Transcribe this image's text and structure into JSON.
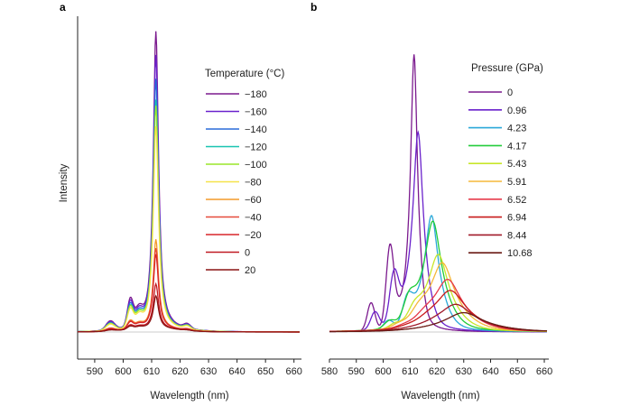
{
  "chart_data": [
    {
      "type": "line",
      "panel_label": "a",
      "xlabel": "Wavelength (nm)",
      "ylabel": "Intensity",
      "xlim": [
        584,
        662
      ],
      "ylim": [
        0,
        1.05
      ],
      "xticks": [
        590,
        600,
        610,
        620,
        630,
        640,
        650,
        660
      ],
      "legend_title": "Temperature (°C)",
      "legend_position": "right",
      "series": [
        {
          "name": "−180",
          "color": "#7b1a8e",
          "peak": 1.0
        },
        {
          "name": "−160",
          "color": "#6a22cc",
          "peak": 0.92
        },
        {
          "name": "−140",
          "color": "#2a6bd9",
          "peak": 0.84
        },
        {
          "name": "−120",
          "color": "#19c4b0",
          "peak": 0.77
        },
        {
          "name": "−100",
          "color": "#9ae62a",
          "peak": 0.75
        },
        {
          "name": "−80",
          "color": "#f5e34a",
          "peak": 0.68
        },
        {
          "name": "−60",
          "color": "#f39a2a",
          "peak": 0.3
        },
        {
          "name": "−40",
          "color": "#e64a3a",
          "peak": 0.27
        },
        {
          "name": "−20",
          "color": "#d9262a",
          "peak": 0.25
        },
        {
          "name": "0",
          "color": "#c01a22",
          "peak": 0.15
        },
        {
          "name": "20",
          "color": "#8a1414",
          "peak": 0.11
        }
      ]
    },
    {
      "type": "line",
      "panel_label": "b",
      "xlabel": "Wavelength (nm)",
      "xlim": [
        580,
        661
      ],
      "ylim": [
        0,
        1.05
      ],
      "xticks": [
        580,
        590,
        600,
        610,
        620,
        630,
        640,
        650,
        660
      ],
      "legend_title": "Pressure (GPa)",
      "legend_position": "right",
      "series": [
        {
          "name": "0",
          "color": "#7b1a8e",
          "peak_x": 611.5,
          "peak": 1.0
        },
        {
          "name": "0.96",
          "color": "#6a22cc",
          "peak_x": 613.0,
          "peak": 0.72
        },
        {
          "name": "4.23",
          "color": "#2aa8d9",
          "peak_x": 618.0,
          "peak": 0.42
        },
        {
          "name": "4.17",
          "color": "#22cc3a",
          "peak_x": 618.5,
          "peak": 0.4
        },
        {
          "name": "5.43",
          "color": "#c8e62a",
          "peak_x": 620.5,
          "peak": 0.28
        },
        {
          "name": "5.91",
          "color": "#f5b83a",
          "peak_x": 622.0,
          "peak": 0.25
        },
        {
          "name": "6.52",
          "color": "#e63a4a",
          "peak_x": 624.0,
          "peak": 0.19
        },
        {
          "name": "6.94",
          "color": "#c81a1a",
          "peak_x": 625.0,
          "peak": 0.15
        },
        {
          "name": "8.44",
          "color": "#a01a2a",
          "peak_x": 627.0,
          "peak": 0.1
        },
        {
          "name": "10.68",
          "color": "#6a1a14",
          "peak_x": 630.0,
          "peak": 0.07
        }
      ]
    }
  ]
}
